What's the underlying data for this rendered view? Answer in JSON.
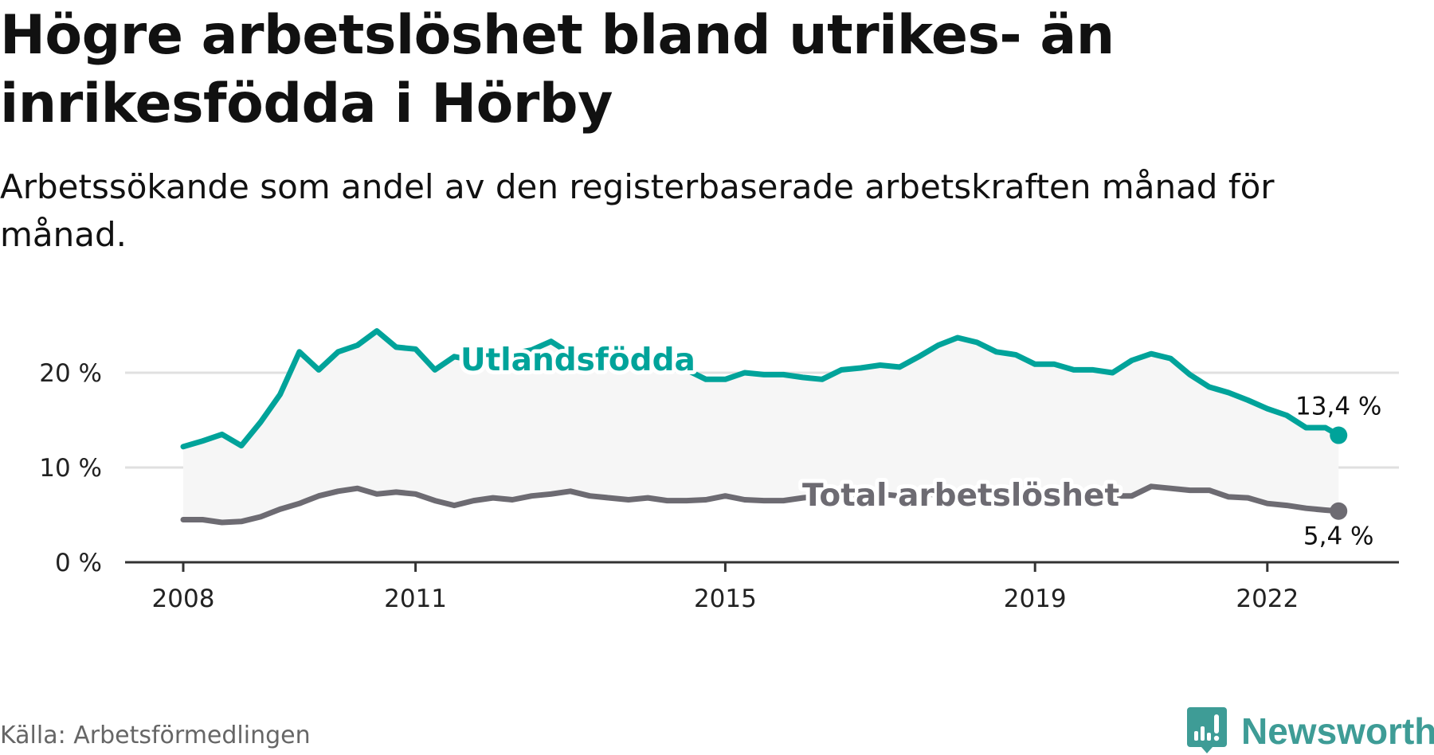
{
  "title": "Högre arbetslöshet bland utrikes- än inrikesfödda i Hörby",
  "subtitle": "Arbetssökande som andel av den registerbaserade arbetskraften månad för månad.",
  "source": "Källa: Arbetsförmedlingen",
  "logo_text": "Newsworthy",
  "colors": {
    "foreign": "#00a39a",
    "total": "#6d6b72",
    "band": "#f6f6f6",
    "logo": "#3e9c96"
  },
  "chart_data": {
    "type": "line",
    "title": "Högre arbetslöshet bland utrikes- än inrikesfödda i Hörby",
    "xlabel": "",
    "ylabel": "",
    "ylim": [
      0,
      25
    ],
    "xlim": [
      2007.7,
      2024.2
    ],
    "yticks": [
      0,
      10,
      20
    ],
    "ytick_labels": [
      "0 %",
      "10 %",
      "20 %"
    ],
    "xticks": [
      2008,
      2011,
      2015,
      2019,
      2022
    ],
    "xtick_labels": [
      "2008",
      "2011",
      "2015",
      "2019",
      "2022"
    ],
    "grid": true,
    "x": [
      2008.0,
      2008.25,
      2008.5,
      2008.75,
      2009.0,
      2009.25,
      2009.5,
      2009.75,
      2010.0,
      2010.25,
      2010.5,
      2010.75,
      2011.0,
      2011.25,
      2011.5,
      2011.75,
      2012.0,
      2012.25,
      2012.5,
      2012.75,
      2013.0,
      2013.25,
      2013.5,
      2013.75,
      2014.0,
      2014.25,
      2014.5,
      2014.75,
      2015.0,
      2015.25,
      2015.5,
      2015.75,
      2016.0,
      2016.25,
      2016.5,
      2016.75,
      2017.0,
      2017.25,
      2017.5,
      2017.75,
      2018.0,
      2018.25,
      2018.5,
      2018.75,
      2019.0,
      2019.25,
      2019.5,
      2019.75,
      2020.0,
      2020.25,
      2020.5,
      2020.75,
      2021.0,
      2021.25,
      2021.5,
      2021.75,
      2022.0,
      2022.25,
      2022.5,
      2022.75,
      2022.92
    ],
    "series": [
      {
        "name": "Utlandsfödda",
        "end_label": "13,4 %",
        "values": [
          12.2,
          12.8,
          13.5,
          12.3,
          14.8,
          17.7,
          22.2,
          20.3,
          22.2,
          22.9,
          24.4,
          22.7,
          22.5,
          20.3,
          21.7,
          21.3,
          21.5,
          22.0,
          22.4,
          23.3,
          22.0,
          21.5,
          21.0,
          20.8,
          20.5,
          20.3,
          20.3,
          19.3,
          19.3,
          20.0,
          19.8,
          19.8,
          19.5,
          19.3,
          20.3,
          20.5,
          20.8,
          20.6,
          21.7,
          22.9,
          23.7,
          23.2,
          22.2,
          21.9,
          20.9,
          20.9,
          20.3,
          20.3,
          20.0,
          21.3,
          22.0,
          21.5,
          19.8,
          18.5,
          17.9,
          17.1,
          16.2,
          15.5,
          14.2,
          14.2,
          13.4
        ]
      },
      {
        "name": "Total arbetslöshet",
        "end_label": "5,4 %",
        "values": [
          4.5,
          4.5,
          4.2,
          4.3,
          4.8,
          5.6,
          6.2,
          7.0,
          7.5,
          7.8,
          7.2,
          7.4,
          7.2,
          6.5,
          6.0,
          6.5,
          6.8,
          6.6,
          7.0,
          7.2,
          7.5,
          7.0,
          6.8,
          6.6,
          6.8,
          6.5,
          6.5,
          6.6,
          7.0,
          6.6,
          6.5,
          6.5,
          6.8,
          7.0,
          7.1,
          7.0,
          7.2,
          7.0,
          7.1,
          7.2,
          7.4,
          7.3,
          7.2,
          7.0,
          7.0,
          6.9,
          6.8,
          6.9,
          7.0,
          7.0,
          8.0,
          7.8,
          7.6,
          7.6,
          6.9,
          6.8,
          6.2,
          6.0,
          5.7,
          5.5,
          5.4
        ]
      }
    ]
  }
}
